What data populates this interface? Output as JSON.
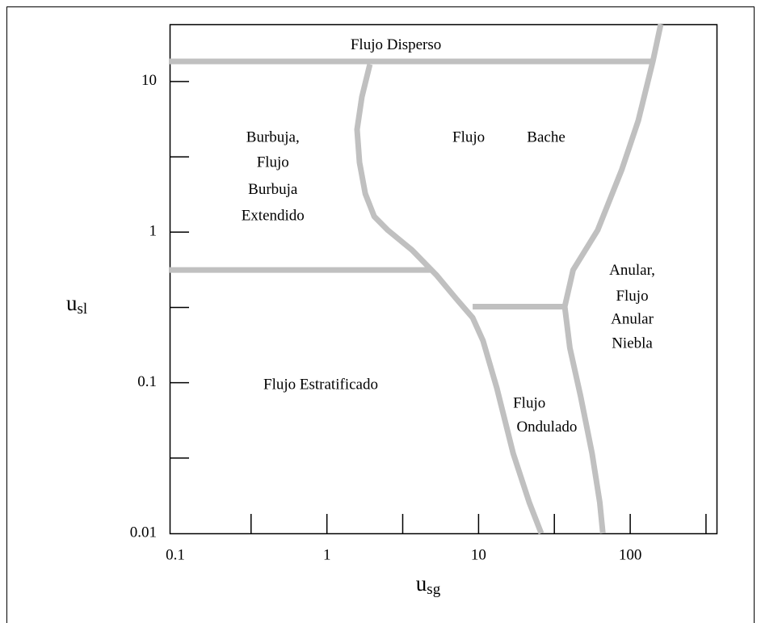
{
  "chart_data": {
    "type": "regime-map",
    "x_label": "u",
    "x_label_sub": "sg",
    "y_label": "u",
    "y_label_sub": "sl",
    "log_x": true,
    "log_y": true,
    "xlim": [
      0.0918,
      371
    ],
    "ylim": [
      0.01,
      24
    ],
    "xticks": [
      0.1,
      1,
      10,
      100
    ],
    "yticks": [
      0.01,
      0.1,
      1,
      10
    ],
    "xminorticks": [
      0.316,
      1,
      3.16,
      10,
      31.6,
      100,
      316
    ],
    "yminorticks": [
      0.0316,
      0.1,
      0.316,
      1,
      3.16,
      10
    ],
    "boundary_color": "#c0c0c0",
    "boundaries": [
      {
        "x": [
          0.0918,
          141
        ],
        "y": [
          13.6,
          13.6
        ]
      },
      {
        "x": [
          159,
          141,
          113,
          88,
          61,
          42,
          37,
          40,
          47,
          56,
          63,
          66
        ],
        "y": [
          24,
          13.6,
          5.5,
          2.6,
          1.03,
          0.56,
          0.32,
          0.17,
          0.082,
          0.034,
          0.016,
          0.01
        ]
      },
      {
        "x": [
          1.92,
          1.7,
          1.58,
          1.64,
          1.79,
          2.05,
          2.52,
          3.64,
          5.26,
          7.14,
          9.14,
          10.7,
          13.2,
          16.9,
          21.6,
          25.9
        ],
        "y": [
          13,
          7.9,
          4.8,
          2.9,
          1.8,
          1.27,
          1.03,
          0.76,
          0.52,
          0.36,
          0.27,
          0.19,
          0.092,
          0.034,
          0.016,
          0.01
        ]
      },
      {
        "x": [
          0.0918,
          4.94
        ],
        "y": [
          0.56,
          0.56
        ]
      },
      {
        "x": [
          9.14,
          37
        ],
        "y": [
          0.32,
          0.32
        ]
      }
    ],
    "annotations": [
      {
        "text": "Flujo Disperso",
        "x": 2.85,
        "y": 17.3
      },
      {
        "text": "Burbuja,",
        "x": 0.44,
        "y": 4.2
      },
      {
        "text": "Flujo",
        "x": 0.44,
        "y": 2.87
      },
      {
        "text": "Burbuja",
        "x": 0.44,
        "y": 1.89
      },
      {
        "text": "Extendido",
        "x": 0.44,
        "y": 1.27
      },
      {
        "text": "Flujo",
        "x": 8.6,
        "y": 4.2
      },
      {
        "text": "Bache",
        "x": 27.9,
        "y": 4.2
      },
      {
        "text": "Anular,",
        "x": 103,
        "y": 0.55
      },
      {
        "text": "Flujo",
        "x": 103,
        "y": 0.37
      },
      {
        "text": "Anular",
        "x": 103,
        "y": 0.26
      },
      {
        "text": "Niebla",
        "x": 103,
        "y": 0.18
      },
      {
        "text": "Flujo Estratificado",
        "x": 0.91,
        "y": 0.096
      },
      {
        "text": "Flujo",
        "x": 21.6,
        "y": 0.072
      },
      {
        "text": "Ondulado",
        "x": 28.2,
        "y": 0.05
      }
    ]
  }
}
